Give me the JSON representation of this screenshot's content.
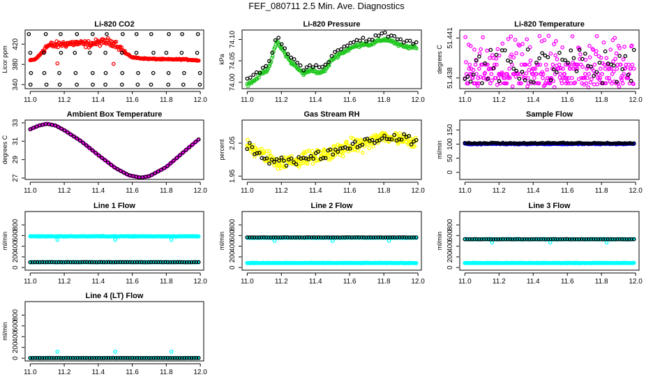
{
  "title": "FEF_080711  2.5 Min. Ave. Diagnostics",
  "colors": {
    "red": "#ff0000",
    "green": "#22c922",
    "magenta": "#ff00ff",
    "yellow": "#ffff00",
    "cyan": "#00ffff",
    "blue": "#0000ff",
    "black": "#000000"
  },
  "chart_data": [
    {
      "type": "scatter",
      "title": "Li-820 CO2",
      "ylabel": "Licor ppm",
      "xlim": [
        10.97,
        12.02
      ],
      "ylim": [
        332,
        448
      ],
      "xticks": [
        11.0,
        11.2,
        11.4,
        11.6,
        11.8,
        12.0
      ],
      "yticks": [
        340,
        380,
        420
      ],
      "series": [
        {
          "color": "#ff0000",
          "marker": "o",
          "n": 250,
          "x": [
            11.0,
            11.99
          ],
          "values": [
            [
              11.0,
              388
            ],
            [
              11.03,
              390
            ],
            [
              11.06,
              400
            ],
            [
              11.08,
              410
            ],
            [
              11.1,
              416
            ],
            [
              11.12,
              418
            ],
            [
              11.15,
              418
            ],
            [
              11.18,
              420
            ],
            [
              11.22,
              421
            ],
            [
              11.26,
              422
            ],
            [
              11.3,
              421
            ],
            [
              11.34,
              420
            ],
            [
              11.38,
              422
            ],
            [
              11.42,
              424
            ],
            [
              11.46,
              425
            ],
            [
              11.5,
              422
            ],
            [
              11.53,
              412
            ],
            [
              11.56,
              402
            ],
            [
              11.6,
              394
            ],
            [
              11.65,
              392
            ],
            [
              11.7,
              391
            ],
            [
              11.8,
              390
            ],
            [
              11.9,
              390
            ],
            [
              11.99,
              388
            ]
          ],
          "spread": 10,
          "spread_range": [
            11.07,
            11.56
          ]
        },
        {
          "color": "#ff0000",
          "marker": "o",
          "n": 2,
          "points": [
            [
              11.16,
              382
            ],
            [
              11.49,
              381
            ]
          ]
        },
        {
          "color": "#000000",
          "marker": "o",
          "x": [
            11.0,
            11.99
          ],
          "rows": [
            340,
            363,
            403,
            440
          ],
          "n": 12
        }
      ]
    },
    {
      "type": "scatter",
      "title": "Li-820 Pressure",
      "ylabel": "kPa",
      "xlim": [
        10.97,
        12.02
      ],
      "ylim": [
        73.985,
        74.122
      ],
      "xticks": [
        11.0,
        11.2,
        11.4,
        11.6,
        11.8,
        12.0
      ],
      "yticks": [
        74.0,
        74.05,
        74.1
      ],
      "series": [
        {
          "color": "#22c922",
          "marker": "o",
          "n": 220,
          "x": [
            11.0,
            11.99
          ],
          "values": [
            [
              11.0,
              73.995
            ],
            [
              11.04,
              74.003
            ],
            [
              11.08,
              74.02
            ],
            [
              11.12,
              74.03
            ],
            [
              11.15,
              74.06
            ],
            [
              11.17,
              74.095
            ],
            [
              11.2,
              74.08
            ],
            [
              11.25,
              74.05
            ],
            [
              11.3,
              74.03
            ],
            [
              11.33,
              74.02
            ],
            [
              11.38,
              74.03
            ],
            [
              11.42,
              74.02
            ],
            [
              11.46,
              74.03
            ],
            [
              11.5,
              74.055
            ],
            [
              11.55,
              74.068
            ],
            [
              11.6,
              74.078
            ],
            [
              11.64,
              74.085
            ],
            [
              11.68,
              74.09
            ],
            [
              11.72,
              74.088
            ],
            [
              11.76,
              74.095
            ],
            [
              11.8,
              74.1
            ],
            [
              11.84,
              74.098
            ],
            [
              11.88,
              74.088
            ],
            [
              11.92,
              74.083
            ],
            [
              11.96,
              74.082
            ],
            [
              11.99,
              74.08
            ]
          ],
          "spread": 0.006
        },
        {
          "color": "#000000",
          "marker": "o",
          "n": 55,
          "x": [
            11.0,
            11.99
          ],
          "offset": 0.012
        }
      ]
    },
    {
      "type": "scatter",
      "title": "Li-820 Temperature",
      "ylabel": "degrees C",
      "xlim": [
        10.97,
        12.02
      ],
      "ylim": [
        51.4372,
        51.4416
      ],
      "xticks": [
        11.0,
        11.2,
        11.4,
        11.6,
        11.8,
        12.0
      ],
      "yticks": [
        51.438,
        51.441
      ],
      "series": [
        {
          "color": "#ff00ff",
          "marker": "o",
          "n": 320,
          "x": [
            11.0,
            11.99
          ],
          "band": [
            51.4373,
            51.4412
          ],
          "dense_levels": [
            51.4376,
            51.438,
            51.4383,
            51.4387,
            51.439
          ]
        },
        {
          "color": "#000000",
          "marker": "o",
          "n": 60,
          "x": [
            11.0,
            11.99
          ],
          "band": [
            51.4375,
            51.4402
          ]
        }
      ]
    },
    {
      "type": "scatter",
      "title": "Ambient Box Temperature",
      "ylabel": "degrees C",
      "xlim": [
        10.97,
        12.02
      ],
      "ylim": [
        26.85,
        33.3
      ],
      "xticks": [
        11.0,
        11.2,
        11.4,
        11.6,
        11.8,
        12.0
      ],
      "yticks": [
        27,
        29,
        31,
        33
      ],
      "series": [
        {
          "color": "#ff00ff",
          "marker": "o",
          "n": 190,
          "x": [
            11.0,
            11.99
          ],
          "values": [
            [
              11.0,
              32.3
            ],
            [
              11.05,
              32.7
            ],
            [
              11.1,
              32.9
            ],
            [
              11.15,
              32.7
            ],
            [
              11.2,
              32.2
            ],
            [
              11.3,
              31.0
            ],
            [
              11.4,
              29.5
            ],
            [
              11.5,
              28.1
            ],
            [
              11.58,
              27.3
            ],
            [
              11.65,
              27.05
            ],
            [
              11.7,
              27.2
            ],
            [
              11.8,
              28.2
            ],
            [
              11.9,
              29.8
            ],
            [
              11.99,
              31.2
            ]
          ]
        },
        {
          "color": "#000000",
          "marker": "o",
          "n": 55,
          "x": [
            11.0,
            11.99
          ],
          "same_curve": true
        }
      ]
    },
    {
      "type": "scatter",
      "title": "Gas Stream RH",
      "ylabel": "percent",
      "xlim": [
        10.97,
        12.02
      ],
      "ylim": [
        1.94,
        2.12
      ],
      "xticks": [
        11.0,
        11.2,
        11.4,
        11.6,
        11.8,
        12.0
      ],
      "yticks": [
        1.95,
        2.05
      ],
      "series": [
        {
          "color": "#ffff00",
          "marker": "o",
          "n": 320,
          "x": [
            11.0,
            11.99
          ],
          "values": [
            [
              11.0,
              2.04
            ],
            [
              11.05,
              2.03
            ],
            [
              11.1,
              2.01
            ],
            [
              11.15,
              2.0
            ],
            [
              11.2,
              1.99
            ],
            [
              11.25,
              1.995
            ],
            [
              11.3,
              2.0
            ],
            [
              11.4,
              2.01
            ],
            [
              11.5,
              2.02
            ],
            [
              11.6,
              2.04
            ],
            [
              11.7,
              2.05
            ],
            [
              11.8,
              2.07
            ],
            [
              11.9,
              2.065
            ],
            [
              11.99,
              2.055
            ]
          ],
          "spread": 0.03
        },
        {
          "color": "#000000",
          "marker": "o",
          "n": 70,
          "x": [
            11.0,
            11.99
          ],
          "spread": 0.02
        }
      ]
    },
    {
      "type": "scatter",
      "title": "Sample Flow",
      "ylabel": "ml/min",
      "xlim": [
        10.97,
        12.02
      ],
      "ylim": [
        -25,
        185
      ],
      "xticks": [
        11.0,
        11.2,
        11.4,
        11.6,
        11.8,
        12.0
      ],
      "yticks": [
        0,
        50,
        100,
        150
      ],
      "series": [
        {
          "color": "#0000ff",
          "marker": "o",
          "n": 220,
          "x": [
            11.0,
            11.99
          ],
          "level": 101,
          "spread": 3
        },
        {
          "color": "#000000",
          "marker": "o",
          "n": 90,
          "x": [
            11.0,
            11.99
          ],
          "level": 103,
          "spread": 3
        }
      ]
    },
    {
      "type": "scatter",
      "title": "Line 1 Flow",
      "ylabel": "ml/min",
      "xlim": [
        10.97,
        12.02
      ],
      "ylim": [
        -50,
        1050
      ],
      "xticks": [
        11.0,
        11.2,
        11.4,
        11.6,
        11.8,
        12.0
      ],
      "yticks": [
        0,
        200,
        400,
        600,
        800
      ],
      "series": [
        {
          "color": "#00ffff",
          "marker": "o",
          "n": 220,
          "x": [
            11.0,
            11.99
          ],
          "level": 585,
          "spread": 8,
          "outliers": [
            [
              11.16,
              520
            ],
            [
              11.5,
              520
            ],
            [
              11.83,
              520
            ]
          ]
        },
        {
          "color": "#00ffff",
          "marker": "o",
          "n": 220,
          "x": [
            11.0,
            11.99
          ],
          "level": 100,
          "spread": 4
        },
        {
          "color": "#000000",
          "marker": "o",
          "n": 72,
          "x": [
            11.0,
            11.99
          ],
          "level": 100,
          "spread": 3
        }
      ]
    },
    {
      "type": "scatter",
      "title": "Line 2 Flow",
      "ylabel": "ml/min",
      "xlim": [
        10.97,
        12.02
      ],
      "ylim": [
        -50,
        1050
      ],
      "xticks": [
        11.0,
        11.2,
        11.4,
        11.6,
        11.8,
        12.0
      ],
      "yticks": [
        0,
        200,
        400,
        600,
        800
      ],
      "series": [
        {
          "color": "#00ffff",
          "marker": "o",
          "n": 220,
          "x": [
            11.0,
            11.99
          ],
          "level": 560,
          "spread": 8,
          "outliers": [
            [
              11.16,
              500
            ],
            [
              11.5,
              500
            ],
            [
              11.83,
              500
            ]
          ]
        },
        {
          "color": "#00ffff",
          "marker": "o",
          "n": 220,
          "x": [
            11.0,
            11.99
          ],
          "level": 85,
          "spread": 6
        },
        {
          "color": "#000000",
          "marker": "o",
          "n": 72,
          "x": [
            11.0,
            11.99
          ],
          "level": 565,
          "spread": 3
        }
      ]
    },
    {
      "type": "scatter",
      "title": "Line 3 Flow",
      "ylabel": "ml/min",
      "xlim": [
        10.97,
        12.02
      ],
      "ylim": [
        -50,
        1050
      ],
      "xticks": [
        11.0,
        11.2,
        11.4,
        11.6,
        11.8,
        12.0
      ],
      "yticks": [
        0,
        200,
        400,
        600,
        800
      ],
      "series": [
        {
          "color": "#00ffff",
          "marker": "o",
          "n": 220,
          "x": [
            11.0,
            11.99
          ],
          "level": 530,
          "spread": 8,
          "outliers": [
            [
              11.16,
              470
            ],
            [
              11.5,
              470
            ],
            [
              11.83,
              470
            ]
          ]
        },
        {
          "color": "#00ffff",
          "marker": "o",
          "n": 220,
          "x": [
            11.0,
            11.99
          ],
          "level": 85,
          "spread": 6
        },
        {
          "color": "#000000",
          "marker": "o",
          "n": 72,
          "x": [
            11.0,
            11.99
          ],
          "level": 530,
          "spread": 3
        }
      ]
    },
    {
      "type": "scatter",
      "title": "Line 4 (LT) Flow",
      "ylabel": "ml/min",
      "xlim": [
        10.97,
        12.02
      ],
      "ylim": [
        -50,
        1050
      ],
      "xticks": [
        11.0,
        11.2,
        11.4,
        11.6,
        11.8,
        12.0
      ],
      "yticks": [
        0,
        200,
        400,
        600,
        800
      ],
      "series": [
        {
          "color": "#00ffff",
          "marker": "o",
          "n": 220,
          "x": [
            11.0,
            11.99
          ],
          "level": 5,
          "spread": 2,
          "outliers": [
            [
              11.16,
              120
            ],
            [
              11.5,
              120
            ],
            [
              11.83,
              120
            ]
          ]
        },
        {
          "color": "#000000",
          "marker": "o",
          "n": 72,
          "x": [
            11.0,
            11.99
          ],
          "level": 5,
          "spread": 2
        }
      ]
    }
  ]
}
